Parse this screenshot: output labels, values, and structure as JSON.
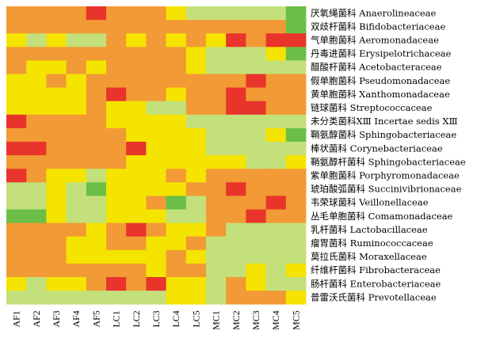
{
  "chart_data": {
    "type": "heatmap",
    "columns": [
      "AF1",
      "AF2",
      "AF3",
      "AF4",
      "AF5",
      "LC1",
      "LC2",
      "LC3",
      "LC4",
      "LC5",
      "MC1",
      "MC2",
      "MC3",
      "MC4",
      "MC5"
    ],
    "rows": [
      {
        "cn": "厌氧绳菌科",
        "en": "Anaerolineaceae"
      },
      {
        "cn": "双歧杆菌科",
        "en": "Bifidobacteriaceae"
      },
      {
        "cn": "气单胞菌科",
        "en": "Aeromonadaceae"
      },
      {
        "cn": "丹毒进菌科",
        "en": "Erysipelotrichaceae"
      },
      {
        "cn": "醋酸杆菌科",
        "en": "Acetobacteraceae"
      },
      {
        "cn": "假单胞菌科",
        "en": "Pseudomonadaceae"
      },
      {
        "cn": "黄单胞菌科",
        "en": "Xanthomonadaceae"
      },
      {
        "cn": "链球菌科",
        "en": "Streptococcaceae"
      },
      {
        "cn": "未分类菌科XⅢ",
        "en": "Incertae sedis XⅢ"
      },
      {
        "cn": "鞘氨醇菌科",
        "en": "Sphingobacteriaceae"
      },
      {
        "cn": "棒状菌科",
        "en": "Corynebacteriaceae"
      },
      {
        "cn": "鞘氨醇杆菌科",
        "en": "Sphingobacteriaceae"
      },
      {
        "cn": "紫单胞菌科",
        "en": "Porphyromonadaceae"
      },
      {
        "cn": "琥珀酸弧菌科",
        "en": "Succinivibrionaceae"
      },
      {
        "cn": "韦荣球菌科",
        "en": "Veillonellaceae"
      },
      {
        "cn": "丛毛单胞菌科",
        "en": "Comamonadaceae"
      },
      {
        "cn": "乳杆菌科",
        "en": "Lactobacillaceae"
      },
      {
        "cn": "瘤胃菌科",
        "en": "Ruminococcaceae"
      },
      {
        "cn": "莫拉氏菌科",
        "en": "Moraxellaceae"
      },
      {
        "cn": "纤维杆菌科",
        "en": "Fibrobacteraceae"
      },
      {
        "cn": "肠杆菌科",
        "en": "Enterobacteriaceae"
      },
      {
        "cn": "普雷沃氏菌科",
        "en": "Prevotellaceae"
      }
    ],
    "color_scale": {
      "low": "#6bbf46",
      "mid_low": "#c4e07a",
      "mid": "#f5e400",
      "mid_high": "#f29a35",
      "high": "#e8342b"
    },
    "values": [
      [
        3,
        3,
        3,
        3,
        4,
        3,
        3,
        3,
        2,
        1,
        1,
        1,
        1,
        1,
        0
      ],
      [
        3,
        3,
        3,
        3,
        3,
        3,
        3,
        3,
        3,
        3,
        3,
        3,
        3,
        3,
        0
      ],
      [
        2,
        1,
        2,
        1,
        1,
        3,
        2,
        3,
        2,
        3,
        2,
        4,
        3,
        4,
        4
      ],
      [
        3,
        3,
        3,
        3,
        3,
        3,
        3,
        3,
        3,
        2,
        1,
        1,
        1,
        2,
        0
      ],
      [
        3,
        2,
        2,
        3,
        2,
        3,
        3,
        3,
        3,
        2,
        1,
        1,
        1,
        1,
        1
      ],
      [
        2,
        2,
        3,
        2,
        3,
        3,
        3,
        3,
        3,
        3,
        3,
        3,
        4,
        3,
        3
      ],
      [
        2,
        2,
        2,
        2,
        3,
        4,
        3,
        3,
        2,
        3,
        3,
        4,
        3,
        3,
        3
      ],
      [
        2,
        2,
        2,
        2,
        3,
        2,
        2,
        1,
        1,
        3,
        3,
        4,
        4,
        3,
        3
      ],
      [
        4,
        3,
        3,
        3,
        3,
        2,
        2,
        2,
        2,
        1,
        1,
        1,
        1,
        1,
        1
      ],
      [
        3,
        3,
        3,
        3,
        3,
        3,
        2,
        2,
        2,
        2,
        1,
        1,
        1,
        2,
        0
      ],
      [
        4,
        4,
        3,
        3,
        3,
        3,
        4,
        2,
        2,
        2,
        1,
        1,
        1,
        1,
        1
      ],
      [
        3,
        3,
        3,
        3,
        3,
        3,
        2,
        2,
        2,
        2,
        2,
        2,
        1,
        1,
        2
      ],
      [
        4,
        3,
        2,
        2,
        1,
        2,
        2,
        2,
        3,
        2,
        3,
        3,
        3,
        3,
        3
      ],
      [
        1,
        1,
        2,
        1,
        0,
        2,
        2,
        2,
        2,
        3,
        3,
        4,
        3,
        3,
        3
      ],
      [
        1,
        1,
        2,
        1,
        1,
        2,
        2,
        3,
        0,
        1,
        3,
        3,
        3,
        4,
        3
      ],
      [
        0,
        0,
        2,
        1,
        1,
        2,
        2,
        2,
        1,
        1,
        3,
        3,
        4,
        3,
        3
      ],
      [
        3,
        3,
        3,
        3,
        2,
        3,
        4,
        3,
        2,
        2,
        3,
        1,
        1,
        1,
        1
      ],
      [
        3,
        3,
        3,
        2,
        2,
        3,
        3,
        2,
        2,
        3,
        1,
        1,
        1,
        1,
        1
      ],
      [
        3,
        3,
        3,
        2,
        2,
        2,
        2,
        2,
        3,
        2,
        1,
        1,
        1,
        1,
        1
      ],
      [
        3,
        3,
        3,
        3,
        3,
        3,
        3,
        2,
        3,
        3,
        1,
        1,
        2,
        1,
        2
      ],
      [
        2,
        1,
        2,
        2,
        3,
        4,
        3,
        4,
        2,
        2,
        1,
        3,
        2,
        1,
        1
      ],
      [
        1,
        1,
        1,
        1,
        1,
        1,
        1,
        1,
        2,
        2,
        1,
        3,
        3,
        3,
        2
      ]
    ]
  }
}
